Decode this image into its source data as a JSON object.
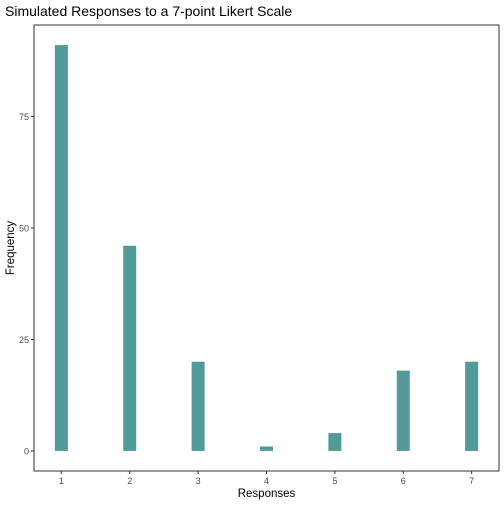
{
  "chart_data": {
    "type": "bar",
    "title": "Simulated Responses to a 7-point Likert Scale",
    "xlabel": "Responses",
    "ylabel": "Frequency",
    "categories": [
      "1",
      "2",
      "3",
      "4",
      "5",
      "6",
      "7"
    ],
    "values": [
      91,
      46,
      20,
      1,
      4,
      18,
      20
    ],
    "ylim": [
      -4.5,
      95.5
    ],
    "yticks": [
      0,
      25,
      50,
      75
    ],
    "grid": false,
    "bar_color": "#529A9A",
    "axis_color": "#333333"
  }
}
